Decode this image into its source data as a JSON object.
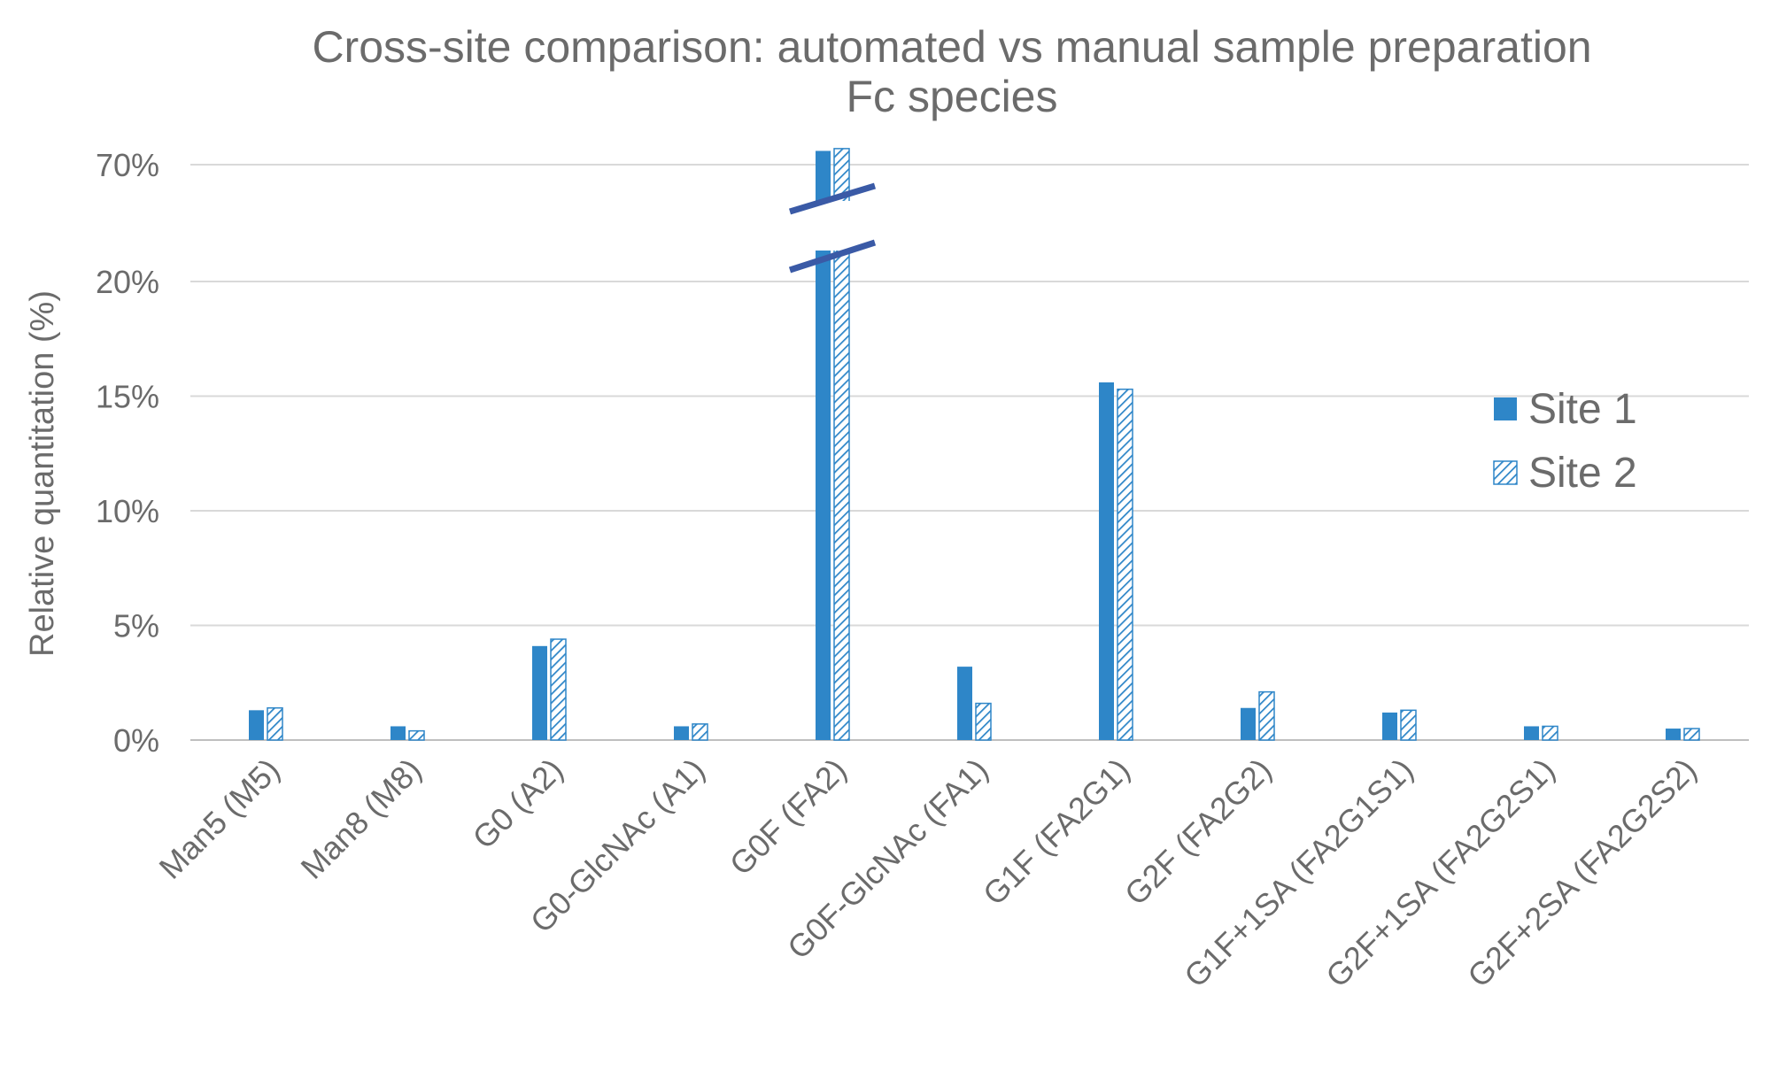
{
  "chart_data": {
    "type": "bar",
    "title": "Cross-site comparison: automated vs manual sample preparation",
    "subtitle": "Fc species",
    "xlabel": "",
    "ylabel": "Relative quantitation (%)",
    "categories": [
      "Man5 (M5)",
      "Man8 (M8)",
      "G0 (A2)",
      "G0-GlcNAc (A1)",
      "G0F (FA2)",
      "G0F-GlcNAc (FA1)",
      "G1F (FA2G1)",
      "G2F (FA2G2)",
      "G1F+1SA (FA2G1S1)",
      "G2F+1SA (FA2G2S1)",
      "G2F+2SA (FA2G2S2)"
    ],
    "series": [
      {
        "name": "Site 1",
        "values": [
          1.3,
          0.6,
          4.1,
          0.6,
          70.6,
          3.2,
          15.6,
          1.4,
          1.2,
          0.6,
          0.5
        ],
        "color": "#2e86c8",
        "pattern": "solid"
      },
      {
        "name": "Site 2",
        "values": [
          1.4,
          0.4,
          4.4,
          0.7,
          70.7,
          1.6,
          15.3,
          2.1,
          1.3,
          0.6,
          0.5
        ],
        "color": "#2e86c8",
        "pattern": "hatched"
      }
    ],
    "yticks": [
      {
        "label": "0%",
        "value": 0
      },
      {
        "label": "5%",
        "value": 5
      },
      {
        "label": "10%",
        "value": 10
      },
      {
        "label": "15%",
        "value": 15
      },
      {
        "label": "20%",
        "value": 20
      },
      {
        "label": "70%",
        "value": 70
      }
    ],
    "axis_break": {
      "from": 20,
      "to": 70
    },
    "ylim": [
      0,
      70
    ],
    "grid": true,
    "legend_position": "right"
  }
}
